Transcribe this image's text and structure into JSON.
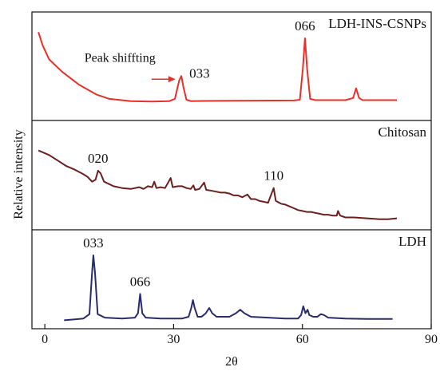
{
  "chart_data": {
    "type": "line",
    "xlabel": "2θ",
    "ylabel": "Relative intensity",
    "xlim": [
      -3,
      90
    ],
    "x_ticks": [
      0,
      30,
      60,
      90
    ],
    "grid": false,
    "legend": "none",
    "panels": [
      {
        "name": "LDH-INS-CSNPs",
        "color": "#e8302b",
        "ylim": [
          0,
          100
        ],
        "points": [
          [
            -1.5,
            97
          ],
          [
            -0.5,
            82
          ],
          [
            1,
            66
          ],
          [
            4,
            52
          ],
          [
            8,
            37
          ],
          [
            12,
            26
          ],
          [
            15,
            21
          ],
          [
            20,
            18.5
          ],
          [
            25,
            18
          ],
          [
            29,
            18.5
          ],
          [
            30.3,
            21
          ],
          [
            31.3,
            42
          ],
          [
            31.8,
            47
          ],
          [
            32.3,
            34
          ],
          [
            33,
            20
          ],
          [
            34,
            18.5
          ],
          [
            40,
            18.7
          ],
          [
            50,
            19
          ],
          [
            58,
            19.2
          ],
          [
            59.4,
            20
          ],
          [
            60.1,
            55
          ],
          [
            60.6,
            90
          ],
          [
            61.1,
            55
          ],
          [
            61.8,
            21
          ],
          [
            63,
            19.5
          ],
          [
            70,
            19.5
          ],
          [
            71.8,
            22
          ],
          [
            72.5,
            33
          ],
          [
            73.2,
            22
          ],
          [
            74,
            19.5
          ],
          [
            80,
            19.5
          ],
          [
            82,
            19.5
          ]
        ],
        "peak_labels": [
          {
            "text": "066",
            "x": 60.6,
            "y": 90
          },
          {
            "text": "033",
            "x": 31.8,
            "y": 47
          }
        ],
        "annotation": {
          "text": "Peak shiffting",
          "arrow_to": [
            31,
            47
          ]
        }
      },
      {
        "name": "Chitosan",
        "color": "#6b1f1f",
        "ylim": [
          0,
          100
        ],
        "points": [
          [
            -1.5,
            83
          ],
          [
            1,
            78
          ],
          [
            3,
            72
          ],
          [
            5,
            66
          ],
          [
            7,
            62
          ],
          [
            9,
            57
          ],
          [
            10,
            54
          ],
          [
            11,
            49
          ],
          [
            11.8,
            51
          ],
          [
            12.4,
            61
          ],
          [
            13,
            58
          ],
          [
            13.8,
            49
          ],
          [
            16,
            44
          ],
          [
            18,
            42
          ],
          [
            20,
            41
          ],
          [
            22,
            43
          ],
          [
            23,
            41
          ],
          [
            24,
            44
          ],
          [
            25,
            43
          ],
          [
            25.5,
            49
          ],
          [
            26,
            42
          ],
          [
            27,
            43
          ],
          [
            28,
            42
          ],
          [
            29.3,
            53
          ],
          [
            29.8,
            43
          ],
          [
            31,
            44
          ],
          [
            32,
            44
          ],
          [
            33,
            42
          ],
          [
            34,
            41
          ],
          [
            34.6,
            45
          ],
          [
            35,
            40
          ],
          [
            36,
            41
          ],
          [
            37.1,
            48
          ],
          [
            37.6,
            40
          ],
          [
            39,
            39
          ],
          [
            40,
            38
          ],
          [
            41,
            37
          ],
          [
            42,
            37
          ],
          [
            43,
            36
          ],
          [
            44,
            34
          ],
          [
            45,
            34
          ],
          [
            46,
            32
          ],
          [
            47.2,
            35
          ],
          [
            48,
            30
          ],
          [
            49,
            30
          ],
          [
            50,
            28
          ],
          [
            51,
            27
          ],
          [
            52,
            26
          ],
          [
            53.3,
            42
          ],
          [
            53.8,
            28
          ],
          [
            55,
            25
          ],
          [
            56,
            24
          ],
          [
            57,
            22
          ],
          [
            58,
            20
          ],
          [
            59,
            18
          ],
          [
            60,
            17
          ],
          [
            61,
            16
          ],
          [
            62,
            16
          ],
          [
            63,
            15
          ],
          [
            64,
            14
          ],
          [
            65,
            13
          ],
          [
            66,
            13
          ],
          [
            67,
            12
          ],
          [
            68,
            12
          ],
          [
            68.3,
            17
          ],
          [
            68.8,
            12
          ],
          [
            70,
            10
          ],
          [
            72,
            10
          ],
          [
            75,
            9
          ],
          [
            78,
            8
          ],
          [
            80,
            8
          ],
          [
            82,
            9
          ]
        ],
        "peak_labels": [
          {
            "text": "020",
            "x": 12.4,
            "y": 61
          },
          {
            "text": "110",
            "x": 53.3,
            "y": 42
          }
        ]
      },
      {
        "name": "LDH",
        "color": "#2a2b6b",
        "ylim": [
          0,
          100
        ],
        "points": [
          [
            4.5,
            6
          ],
          [
            7,
            7
          ],
          [
            9,
            8
          ],
          [
            10.4,
            13
          ],
          [
            11,
            60
          ],
          [
            11.3,
            80
          ],
          [
            11.7,
            60
          ],
          [
            12.3,
            13
          ],
          [
            14,
            9
          ],
          [
            18,
            8
          ],
          [
            21,
            9
          ],
          [
            21.7,
            14
          ],
          [
            22.2,
            36
          ],
          [
            22.7,
            14
          ],
          [
            23.5,
            9
          ],
          [
            27,
            8
          ],
          [
            32,
            8
          ],
          [
            33.5,
            10
          ],
          [
            34.1,
            20
          ],
          [
            34.5,
            29
          ],
          [
            34.9,
            20
          ],
          [
            35.6,
            10
          ],
          [
            36.5,
            10
          ],
          [
            37.5,
            14
          ],
          [
            38.3,
            20
          ],
          [
            39,
            14
          ],
          [
            40,
            10
          ],
          [
            43,
            10
          ],
          [
            44.5,
            14
          ],
          [
            45.5,
            18
          ],
          [
            46.5,
            14
          ],
          [
            48,
            10
          ],
          [
            52,
            9
          ],
          [
            56,
            8
          ],
          [
            59,
            8
          ],
          [
            59.7,
            12
          ],
          [
            60.2,
            22
          ],
          [
            60.7,
            14
          ],
          [
            61.2,
            18
          ],
          [
            61.6,
            12
          ],
          [
            62.5,
            10
          ],
          [
            63.5,
            10
          ],
          [
            64.3,
            13
          ],
          [
            65,
            12
          ],
          [
            66,
            9
          ],
          [
            70,
            8
          ],
          [
            75,
            7.5
          ],
          [
            81,
            7.5
          ]
        ],
        "peak_labels": [
          {
            "text": "033",
            "x": 11.3,
            "y": 80
          },
          {
            "text": "066",
            "x": 22.2,
            "y": 36
          }
        ]
      }
    ]
  }
}
